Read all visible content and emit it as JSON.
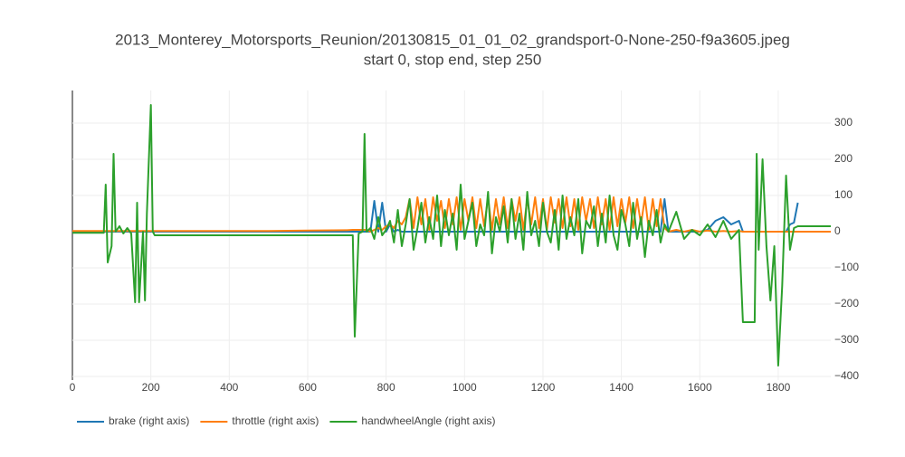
{
  "chart_data": {
    "type": "line",
    "title": "2013_Monterey_Motorsports_Reunion/20130815_01_01_02_grandsport-0-None-250-f9a3605.jpeg",
    "subtitle": "start 0, stop end, step 250",
    "x": [
      0,
      80,
      85,
      90,
      100,
      105,
      110,
      120,
      130,
      140,
      150,
      160,
      165,
      170,
      180,
      185,
      190,
      200,
      205,
      210,
      300,
      400,
      500,
      600,
      700,
      715,
      720,
      730,
      740,
      745,
      750,
      760,
      770,
      780,
      790,
      800,
      810,
      820,
      830,
      840,
      850,
      860,
      870,
      880,
      890,
      900,
      910,
      920,
      930,
      940,
      950,
      960,
      970,
      980,
      990,
      1000,
      1010,
      1020,
      1030,
      1040,
      1050,
      1060,
      1070,
      1080,
      1090,
      1100,
      1110,
      1120,
      1130,
      1140,
      1150,
      1160,
      1170,
      1180,
      1190,
      1200,
      1210,
      1220,
      1230,
      1240,
      1250,
      1260,
      1270,
      1280,
      1290,
      1300,
      1310,
      1320,
      1330,
      1340,
      1350,
      1360,
      1370,
      1380,
      1390,
      1400,
      1410,
      1420,
      1430,
      1440,
      1450,
      1460,
      1470,
      1480,
      1490,
      1500,
      1510,
      1520,
      1540,
      1560,
      1580,
      1600,
      1620,
      1640,
      1660,
      1680,
      1700,
      1710,
      1740,
      1745,
      1750,
      1760,
      1770,
      1780,
      1790,
      1800,
      1810,
      1820,
      1830,
      1840,
      1850,
      1934
    ],
    "series": [
      {
        "name": "brake (right axis)",
        "color": "#1f77b4",
        "axis": "y2",
        "values": [
          0,
          0,
          0,
          0,
          0,
          0,
          0,
          0,
          0,
          0,
          0,
          0,
          0,
          0,
          0,
          0,
          0,
          0,
          0,
          0,
          0,
          0,
          0,
          0,
          0,
          0,
          0,
          0,
          0,
          0,
          0,
          0,
          85,
          0,
          80,
          0,
          20,
          0,
          5,
          0,
          0,
          0,
          0,
          0,
          0,
          0,
          0,
          0,
          0,
          0,
          0,
          0,
          0,
          0,
          0,
          0,
          0,
          0,
          0,
          0,
          0,
          0,
          0,
          0,
          0,
          0,
          0,
          0,
          0,
          0,
          0,
          0,
          0,
          0,
          0,
          0,
          0,
          0,
          0,
          0,
          0,
          0,
          0,
          0,
          0,
          0,
          0,
          0,
          0,
          0,
          0,
          0,
          0,
          0,
          0,
          0,
          0,
          0,
          0,
          0,
          0,
          0,
          0,
          0,
          0,
          0,
          90,
          0,
          0,
          0,
          0,
          0,
          5,
          30,
          40,
          20,
          30,
          0,
          0,
          0,
          0,
          0,
          0,
          0,
          0,
          0,
          0,
          0,
          20,
          25,
          80,
          null
        ]
      },
      {
        "name": "throttle (right axis)",
        "color": "#ff7f0e",
        "axis": "y2",
        "values": [
          2,
          2,
          2,
          2,
          2,
          2,
          2,
          2,
          2,
          2,
          2,
          2,
          2,
          2,
          2,
          2,
          2,
          2,
          2,
          2,
          2,
          2,
          2,
          3,
          4,
          5,
          5,
          5,
          5,
          5,
          5,
          0,
          5,
          10,
          5,
          15,
          20,
          10,
          30,
          20,
          40,
          90,
          10,
          95,
          20,
          90,
          5,
          95,
          30,
          85,
          10,
          90,
          20,
          95,
          5,
          90,
          30,
          95,
          10,
          90,
          15,
          95,
          5,
          90,
          20,
          95,
          10,
          90,
          30,
          95,
          5,
          90,
          20,
          95,
          10,
          90,
          5,
          95,
          25,
          90,
          10,
          95,
          15,
          90,
          5,
          95,
          30,
          90,
          10,
          95,
          20,
          90,
          5,
          95,
          15,
          90,
          25,
          95,
          10,
          90,
          20,
          95,
          5,
          90,
          15,
          90,
          10,
          0,
          5,
          0,
          5,
          0,
          3,
          0,
          2,
          0,
          2,
          0,
          0,
          0,
          0,
          0,
          0,
          0,
          0,
          0,
          0,
          0,
          0,
          0,
          0,
          0
        ]
      },
      {
        "name": "handwheelAngle (right axis)",
        "color": "#2ca02c",
        "axis": "y2",
        "values": [
          -3,
          -3,
          130,
          -85,
          -40,
          215,
          0,
          15,
          -5,
          10,
          -5,
          -195,
          80,
          -195,
          0,
          -190,
          50,
          350,
          0,
          -10,
          -10,
          -10,
          -10,
          -10,
          -10,
          -10,
          -290,
          -5,
          0,
          270,
          0,
          10,
          -20,
          40,
          -10,
          5,
          30,
          -30,
          60,
          -40,
          20,
          90,
          -50,
          10,
          80,
          -30,
          40,
          -20,
          100,
          -40,
          60,
          -10,
          50,
          -50,
          130,
          -20,
          30,
          80,
          -40,
          20,
          -10,
          110,
          -60,
          40,
          0,
          70,
          -30,
          90,
          -20,
          50,
          -50,
          110,
          -10,
          30,
          -40,
          80,
          0,
          -30,
          60,
          -50,
          100,
          -20,
          40,
          -10,
          90,
          -60,
          30,
          10,
          70,
          -40,
          50,
          -30,
          100,
          -10,
          -50,
          60,
          20,
          -40,
          80,
          -20,
          40,
          -70,
          30,
          -10,
          60,
          -30,
          20,
          0,
          55,
          -20,
          5,
          -10,
          20,
          -15,
          30,
          -20,
          5,
          -250,
          -250,
          215,
          -50,
          200,
          -40,
          -190,
          -40,
          -370,
          -150,
          155,
          -50,
          10,
          15,
          15
        ]
      }
    ],
    "xlim": [
      0,
      1934
    ],
    "xticks": [
      0,
      200,
      400,
      600,
      800,
      1000,
      1200,
      1400,
      1600,
      1800
    ],
    "y2lim": [
      -410,
      390
    ],
    "y2ticks": [
      300,
      200,
      100,
      0,
      {
        "value": -100,
        "label": "−100"
      },
      {
        "value": -200,
        "label": "−200"
      },
      {
        "value": -300,
        "label": "−300"
      },
      {
        "value": -400,
        "label": "−400"
      }
    ],
    "grid": true,
    "legend": "bottom-left"
  }
}
